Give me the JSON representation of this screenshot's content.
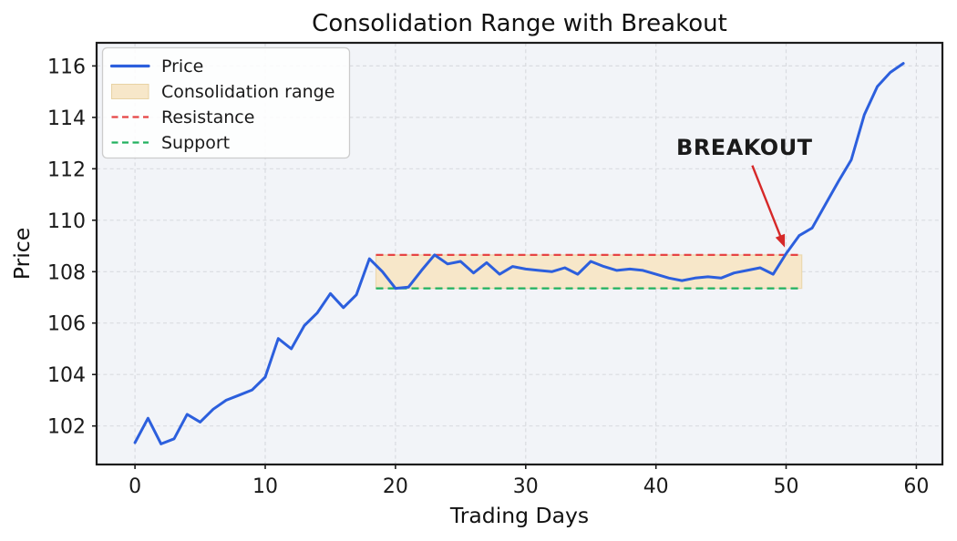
{
  "chart_data": {
    "type": "line",
    "title": "Consolidation Range with Breakout",
    "xlabel": "Trading Days",
    "ylabel": "Price",
    "xlim": [
      -2.95,
      62.0
    ],
    "ylim": [
      100.5,
      116.9
    ],
    "xticks": [
      0,
      10,
      20,
      30,
      40,
      50,
      60
    ],
    "yticks": [
      102,
      104,
      106,
      108,
      110,
      112,
      114,
      116
    ],
    "grid": true,
    "x": [
      0,
      1,
      2,
      3,
      4,
      5,
      6,
      7,
      8,
      9,
      10,
      11,
      12,
      13,
      14,
      15,
      16,
      17,
      18,
      19,
      20,
      21,
      22,
      23,
      24,
      25,
      26,
      27,
      28,
      29,
      30,
      31,
      32,
      33,
      34,
      35,
      36,
      37,
      38,
      39,
      40,
      41,
      42,
      43,
      44,
      45,
      46,
      47,
      48,
      49,
      50,
      51,
      52,
      53,
      54,
      55,
      56,
      57,
      58,
      59
    ],
    "series": [
      {
        "name": "Price",
        "color": "#2c5fdd",
        "values": [
          101.35,
          102.3,
          101.3,
          101.5,
          102.45,
          102.15,
          102.65,
          103.0,
          103.2,
          103.4,
          103.9,
          105.4,
          105.0,
          105.9,
          106.4,
          107.15,
          106.6,
          107.1,
          108.5,
          108.0,
          107.35,
          107.4,
          108.05,
          108.65,
          108.3,
          108.4,
          107.95,
          108.35,
          107.9,
          108.2,
          108.1,
          108.05,
          108.0,
          108.15,
          107.9,
          108.4,
          108.2,
          108.05,
          108.1,
          108.05,
          107.9,
          107.75,
          107.65,
          107.75,
          107.8,
          107.75,
          107.95,
          108.05,
          108.15,
          107.9,
          108.7,
          109.4,
          109.7,
          110.6,
          111.5,
          112.35,
          114.1,
          115.2,
          115.75,
          116.1
        ]
      }
    ],
    "consolidation": {
      "label": "Consolidation range",
      "x_start": 18.5,
      "x_end": 51.2,
      "y_low": 107.35,
      "y_high": 108.65,
      "fill": "#f7e7c9",
      "edge": "#e8d3a4"
    },
    "resistance": {
      "label": "Resistance",
      "value": 108.65,
      "color": "#e64444"
    },
    "support": {
      "label": "Support",
      "value": 107.35,
      "color": "#21b15e"
    },
    "annotation": {
      "text": "BREAKOUT",
      "color": "#d62828",
      "text_x": 46.8,
      "text_y": 112.54,
      "arrow": {
        "x1": 47.4,
        "y1": 112.13,
        "x2": 49.9,
        "y2": 108.94
      }
    },
    "legend": {
      "position": "upper left",
      "items": [
        {
          "label": "Price",
          "type": "line",
          "color": "#2c5fdd"
        },
        {
          "label": "Consolidation range",
          "type": "patch",
          "color": "#f7e7c9"
        },
        {
          "label": "Resistance",
          "type": "dashes",
          "color": "#e64444"
        },
        {
          "label": "Support",
          "type": "dashes",
          "color": "#21b15e"
        }
      ]
    },
    "style": {
      "plot_background": "#f2f4f8",
      "figure_background": "#ffffff",
      "grid_color": "#d9dbe0",
      "spine_color": "#1c1c1c"
    }
  }
}
